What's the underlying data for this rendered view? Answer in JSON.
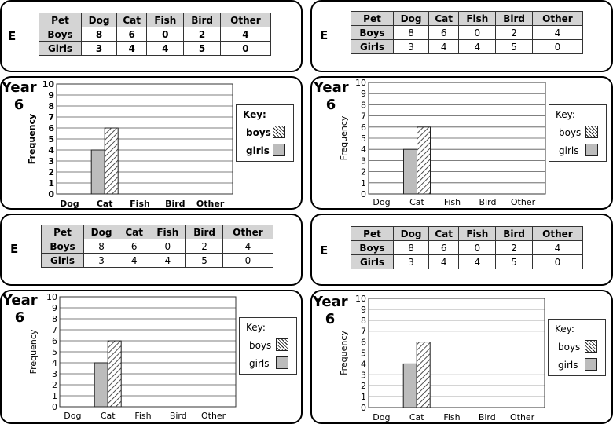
{
  "panels": [
    {
      "e_label": "E",
      "year_word": "Year",
      "year_num": "6",
      "bold": true
    },
    {
      "e_label": "E",
      "year_word": "Year",
      "year_num": "6",
      "bold": false
    },
    {
      "e_label": "E",
      "year_word": "Year",
      "year_num": "6",
      "bold": false
    },
    {
      "e_label": "E",
      "year_word": "Year",
      "year_num": "6",
      "bold": false
    }
  ],
  "table": {
    "headers": [
      "Pet",
      "Dog",
      "Cat",
      "Fish",
      "Bird",
      "Other"
    ],
    "rows": [
      {
        "label": "Boys",
        "values": [
          "8",
          "6",
          "0",
          "2",
          "4"
        ]
      },
      {
        "label": "Girls",
        "values": [
          "3",
          "4",
          "4",
          "5",
          "0"
        ]
      }
    ]
  },
  "key": {
    "title": "Key:",
    "boys": "boys",
    "girls": "girls"
  },
  "colors": {
    "girls_fill": "#bcbcbc",
    "boys_fill": "hatched",
    "grid": "#555555"
  },
  "chart_data": {
    "type": "bar",
    "categories": [
      "Dog",
      "Cat",
      "Fish",
      "Bird",
      "Other"
    ],
    "series": [
      {
        "name": "girls",
        "values": [
          null,
          4,
          null,
          null,
          null
        ]
      },
      {
        "name": "boys",
        "values": [
          null,
          6,
          null,
          null,
          null
        ]
      }
    ],
    "ylabel": "Frequency",
    "xlabel": "",
    "ylim": [
      0,
      10
    ],
    "yticks": [
      0,
      1,
      2,
      3,
      4,
      5,
      6,
      7,
      8,
      9,
      10
    ],
    "grid": true,
    "legend_placement": "right"
  }
}
